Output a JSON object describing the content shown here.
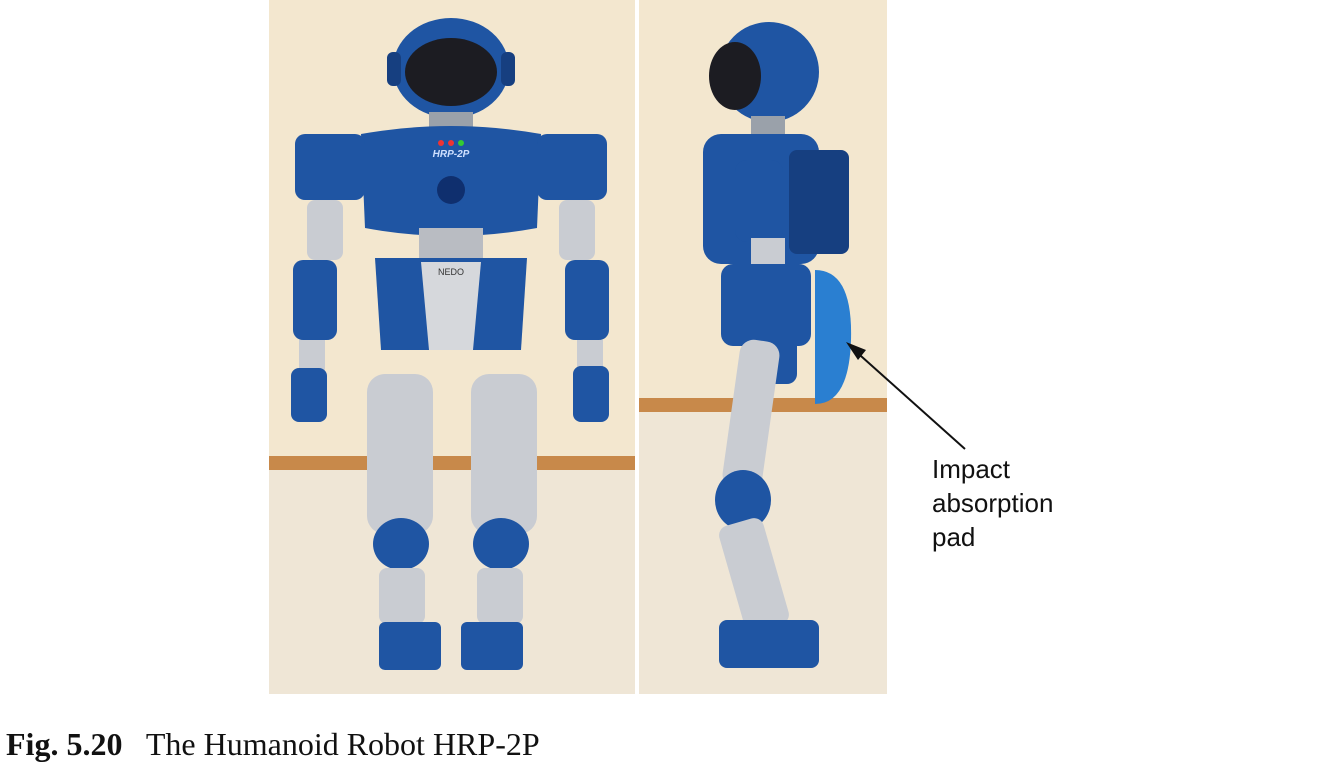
{
  "figure": {
    "caption_label": "Fig. 5.20",
    "caption_text": "The Humanoid Robot HRP-2P",
    "annotation": "Impact\nabsorption\npad",
    "photos": [
      {
        "view": "front",
        "chest_text": "HRP-2P",
        "waist_text": "NEDO"
      },
      {
        "view": "side"
      }
    ],
    "colors": {
      "robot_blue": "#1f55a3",
      "robot_blue_dark": "#0f2f6e",
      "silver": "#c9ccd2",
      "wall": "#f3e7cf",
      "floor": "#efe6d6",
      "baseboard": "#c8894a",
      "pad_blue": "#2a7fd1"
    }
  }
}
